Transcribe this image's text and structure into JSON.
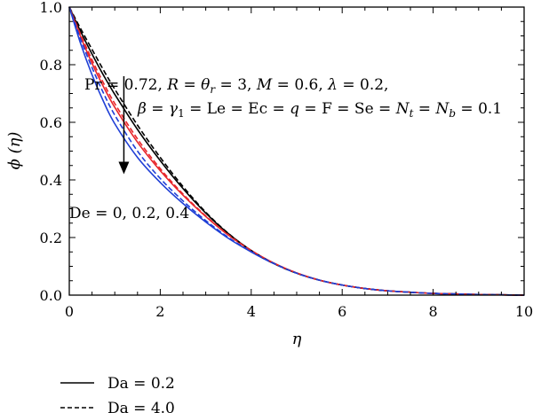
{
  "chart_data": {
    "type": "line",
    "xlabel": "η",
    "ylabel": "ϕ (η)",
    "xlim": [
      0,
      10
    ],
    "ylim": [
      0,
      1
    ],
    "xticks": [
      0,
      2,
      4,
      6,
      8,
      10
    ],
    "yticks": [
      0.0,
      0.2,
      0.4,
      0.6,
      0.8,
      1.0
    ],
    "x_tick_labels": [
      "0",
      "2",
      "4",
      "6",
      "8",
      "10"
    ],
    "y_tick_labels": [
      "0.0",
      "0.2",
      "0.4",
      "0.6",
      "0.8",
      "1.0"
    ],
    "grid": false,
    "x": [
      0,
      0.25,
      0.5,
      0.75,
      1,
      1.5,
      2,
      2.5,
      3,
      3.5,
      4,
      4.5,
      5,
      5.5,
      6,
      6.5,
      7,
      7.5,
      8,
      8.5,
      9,
      9.5,
      10
    ],
    "series": [
      {
        "group": "Da = 0.2",
        "De": "0",
        "color": "#000000",
        "dash": "solid",
        "values": [
          1.0,
          0.915,
          0.837,
          0.764,
          0.697,
          0.575,
          0.467,
          0.37,
          0.285,
          0.213,
          0.155,
          0.11,
          0.076,
          0.052,
          0.035,
          0.023,
          0.015,
          0.01,
          0.006,
          0.004,
          0.002,
          0.001,
          0.0
        ]
      },
      {
        "group": "Da = 0.2",
        "De": "0.2",
        "color": "#e8262a",
        "dash": "solid",
        "values": [
          1.0,
          0.897,
          0.805,
          0.724,
          0.652,
          0.531,
          0.432,
          0.347,
          0.273,
          0.208,
          0.155,
          0.111,
          0.077,
          0.052,
          0.035,
          0.023,
          0.015,
          0.01,
          0.006,
          0.004,
          0.002,
          0.001,
          0.0
        ]
      },
      {
        "group": "Da = 0.2",
        "De": "0.4",
        "color": "#1f3fd6",
        "dash": "solid",
        "values": [
          1.0,
          0.873,
          0.765,
          0.673,
          0.595,
          0.478,
          0.391,
          0.318,
          0.254,
          0.197,
          0.15,
          0.109,
          0.076,
          0.052,
          0.035,
          0.023,
          0.015,
          0.01,
          0.006,
          0.004,
          0.002,
          0.001,
          0.0
        ]
      },
      {
        "group": "Da = 4.0",
        "De": "0",
        "color": "#000000",
        "dash": "dashed",
        "values": [
          1.0,
          0.925,
          0.853,
          0.782,
          0.715,
          0.59,
          0.478,
          0.377,
          0.288,
          0.214,
          0.155,
          0.11,
          0.076,
          0.052,
          0.035,
          0.023,
          0.015,
          0.01,
          0.006,
          0.004,
          0.002,
          0.001,
          0.0
        ]
      },
      {
        "group": "Da = 4.0",
        "De": "0.2",
        "color": "#e8262a",
        "dash": "dashed",
        "values": [
          1.0,
          0.905,
          0.817,
          0.737,
          0.665,
          0.542,
          0.439,
          0.351,
          0.275,
          0.209,
          0.155,
          0.111,
          0.077,
          0.052,
          0.035,
          0.023,
          0.015,
          0.01,
          0.006,
          0.004,
          0.002,
          0.001,
          0.0
        ]
      },
      {
        "group": "Da = 4.0",
        "De": "0.4",
        "color": "#1f3fd6",
        "dash": "dashed",
        "values": [
          1.0,
          0.888,
          0.79,
          0.702,
          0.625,
          0.5,
          0.405,
          0.327,
          0.259,
          0.2,
          0.151,
          0.11,
          0.076,
          0.052,
          0.035,
          0.023,
          0.015,
          0.01,
          0.006,
          0.004,
          0.002,
          0.001,
          0.0
        ]
      }
    ],
    "annotations": {
      "params_line1": "Pr = 0.72, R = θr = 3, M = 0.6, λ = 0.2,",
      "params_line2": "β = γ1 = Le = Ec = q = F = Se = Nt = Nb = 0.1",
      "arrow_label": "De = 0, 0.2, 0.4",
      "arrow_x": 1.2,
      "arrow_y_from": 0.76,
      "arrow_y_to": 0.42
    },
    "legend": {
      "position": "bottom-left, below plot",
      "entries": [
        {
          "label": "Da = 0.2",
          "dash": "solid"
        },
        {
          "label": "Da = 4.0",
          "dash": "dashed"
        }
      ]
    }
  }
}
